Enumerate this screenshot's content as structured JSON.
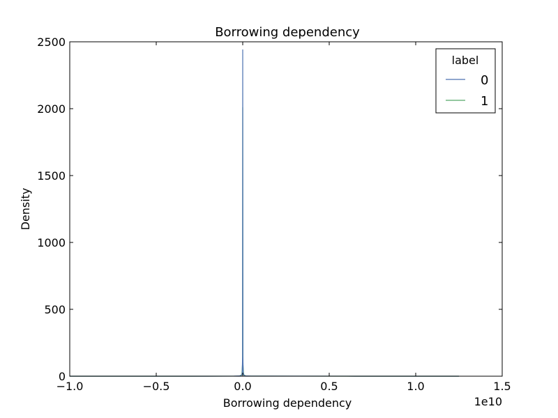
{
  "chart_data": {
    "type": "line",
    "title": "Borrowing dependency",
    "xlabel": "Borrowing dependency",
    "ylabel": "Density",
    "x_offset_label": "1e10",
    "xlim": [
      -1.0,
      1.5
    ],
    "ylim": [
      0,
      2500
    ],
    "xticks": [
      -1.0,
      -0.5,
      0.0,
      0.5,
      1.0,
      1.5
    ],
    "xtick_labels": [
      "−1.0",
      "−0.5",
      "0.0",
      "0.5",
      "1.0",
      "1.5"
    ],
    "yticks": [
      0,
      500,
      1000,
      1500,
      2000,
      2500
    ],
    "ytick_labels": [
      "0",
      "500",
      "1000",
      "1500",
      "2000",
      "2500"
    ],
    "grid": false,
    "legend": {
      "title": "label",
      "position": "top-right"
    },
    "series": [
      {
        "name": "0",
        "color": "#4c72b0",
        "x": [
          -1.0,
          -0.2,
          -0.05,
          -0.01,
          -0.003,
          -0.001,
          0.0,
          0.001,
          0.003,
          0.01,
          0.05,
          0.2,
          0.6,
          1.0,
          1.25
        ],
        "y": [
          0,
          0,
          0.5,
          3,
          20,
          150,
          2440,
          150,
          20,
          3,
          1,
          0.5,
          0.2,
          0.05,
          0
        ]
      },
      {
        "name": "1",
        "color": "#55a868",
        "x": [
          -1.0,
          -0.3,
          -0.1,
          -0.02,
          -0.005,
          -0.001,
          0.0,
          0.001,
          0.005,
          0.02,
          0.1,
          0.3,
          0.7,
          1.0,
          1.25
        ],
        "y": [
          0,
          0,
          0.2,
          1,
          10,
          100,
          2010,
          100,
          10,
          1,
          0.5,
          0.2,
          0.1,
          0.03,
          0
        ]
      }
    ]
  }
}
